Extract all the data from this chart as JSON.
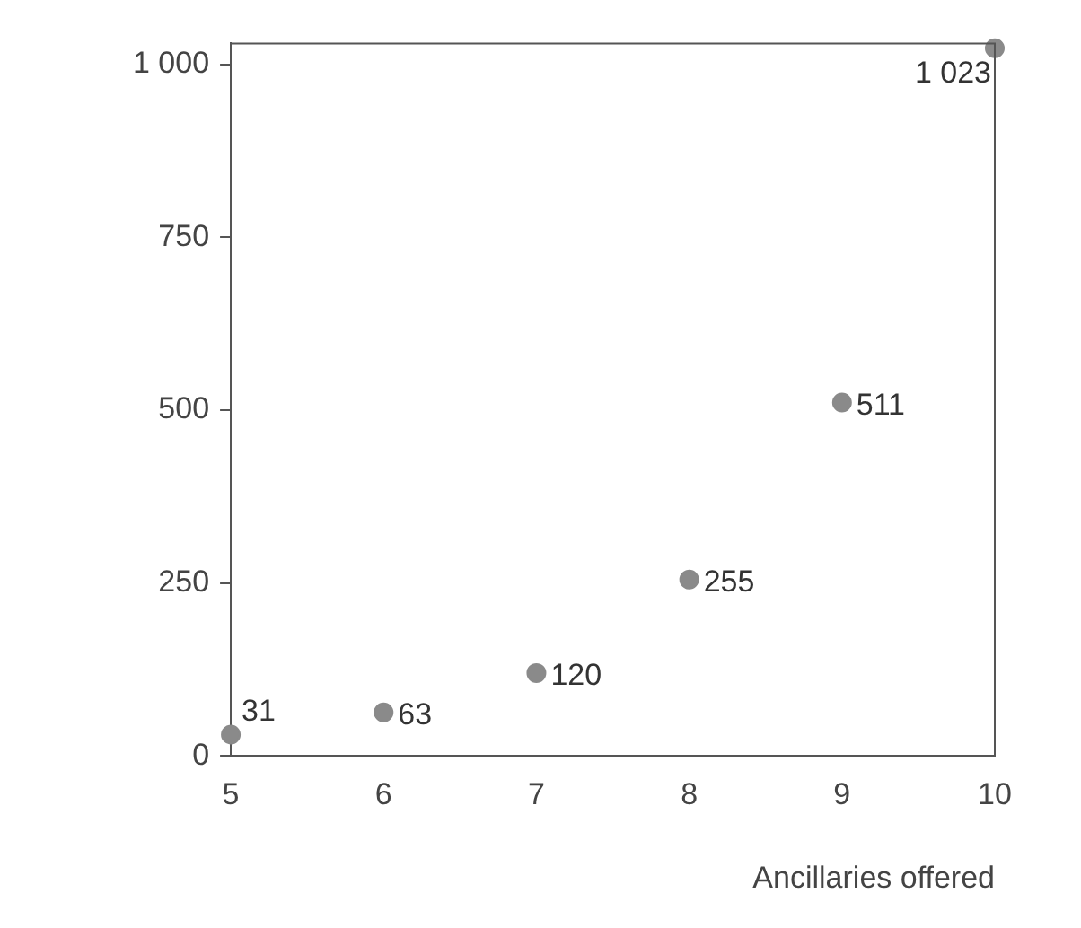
{
  "chart_data": {
    "type": "scatter",
    "xlabel": "Ancillaries offered",
    "x": [
      5,
      6,
      7,
      8,
      9,
      10
    ],
    "series": [
      {
        "color": "#8a8a8a",
        "values": [
          31,
          63,
          120,
          255,
          511,
          1023
        ],
        "value_labels": [
          "31",
          "63",
          "120",
          "255",
          "511",
          "1 023"
        ]
      }
    ],
    "xlim": [
      5,
      10
    ],
    "xticks": [
      5,
      6,
      7,
      8,
      9,
      10
    ],
    "ylim": [
      0,
      1030
    ],
    "yticks": [
      0,
      250,
      500,
      750,
      {
        "value": 1000,
        "label": "1 000"
      }
    ],
    "grid": false,
    "legend": false,
    "marker": "circle"
  }
}
